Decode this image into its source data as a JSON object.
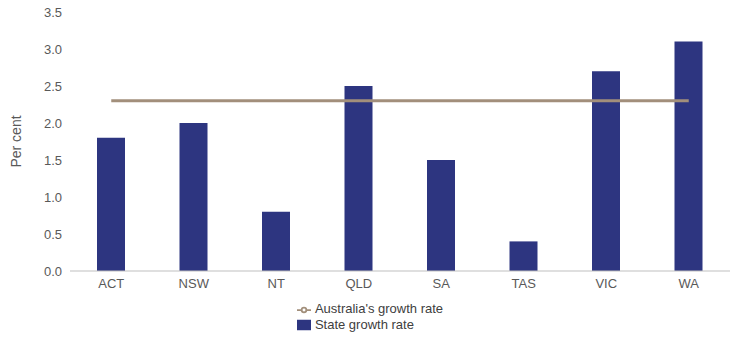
{
  "chart_data": {
    "type": "bar",
    "y_label": "Per cent",
    "categories": [
      "ACT",
      "NSW",
      "NT",
      "QLD",
      "SA",
      "TAS",
      "VIC",
      "WA"
    ],
    "series": [
      {
        "name": "State growth rate",
        "type": "bar",
        "color": "#2d3580",
        "values": [
          1.8,
          2.0,
          0.8,
          2.5,
          1.5,
          0.4,
          2.7,
          3.1
        ]
      },
      {
        "name": "Australia's growth rate",
        "type": "line",
        "color": "#a28f7b",
        "values": [
          2.3,
          2.3,
          2.3,
          2.3,
          2.3,
          2.3,
          2.3,
          2.3
        ]
      }
    ],
    "ylim": [
      0,
      3.5
    ],
    "yticks": [
      {
        "value": 0,
        "label": "0.0"
      },
      0.5,
      {
        "value": 1,
        "label": "1.0"
      },
      1.5,
      {
        "value": 2,
        "label": "2.0"
      },
      2.5,
      {
        "value": 3,
        "label": "3.0"
      },
      3.5
    ],
    "grid": false,
    "legend": "bottom"
  }
}
